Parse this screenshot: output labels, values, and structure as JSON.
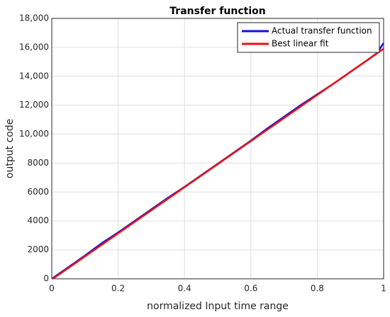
{
  "chart_data": {
    "type": "line",
    "title": "Transfer function",
    "xlabel": "normalized Input time range",
    "ylabel": "output code",
    "xlim": [
      0,
      1
    ],
    "xticks": [
      0,
      0.2,
      0.4,
      0.6,
      0.8,
      1
    ],
    "ylim": [
      0,
      18000
    ],
    "yticks": [
      0,
      2000,
      4000,
      6000,
      8000,
      {
        "value": 10000,
        "label": "10,000"
      },
      {
        "value": 12000,
        "label": "12,000"
      },
      {
        "value": 14000,
        "label": "14,000"
      },
      {
        "value": 16000,
        "label": "16,000"
      },
      {
        "value": 18000,
        "label": "18,000"
      }
    ],
    "grid": true,
    "legend": "upper right",
    "series": [
      {
        "name": "Actual transfer function",
        "color": "#1010e0",
        "x": [
          0,
          0.05,
          0.1,
          0.15,
          0.2,
          0.25,
          0.3,
          0.35,
          0.4,
          0.45,
          0.5,
          0.55,
          0.6,
          0.65,
          0.7,
          0.75,
          0.8,
          0.85,
          0.9,
          0.95,
          0.98,
          1
        ],
        "values": [
          0,
          800,
          1600,
          2450,
          3200,
          4000,
          4800,
          5600,
          6350,
          7150,
          7950,
          8750,
          9550,
          10400,
          11200,
          12000,
          12750,
          13500,
          14300,
          15100,
          15600,
          16300
        ]
      },
      {
        "name": "Best linear fit",
        "color": "#ee1111",
        "x": [
          0,
          1
        ],
        "values": [
          -50,
          15900
        ]
      }
    ]
  }
}
